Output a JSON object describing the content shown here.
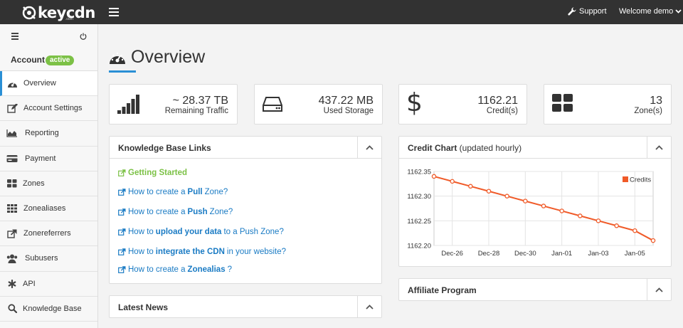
{
  "topbar": {
    "logo_text": "keycdn",
    "logo_sub": ".com",
    "support_label": "Support",
    "welcome_label": "Welcome demo"
  },
  "sidebar": {
    "account_label": "Account",
    "account_badge": "active",
    "items": [
      {
        "label": "Overview",
        "icon": "dashboard-icon",
        "active": true
      },
      {
        "label": "Account Settings",
        "icon": "edit-icon"
      },
      {
        "label": "Reporting",
        "icon": "area-chart-icon"
      },
      {
        "label": "Payment",
        "icon": "credit-card-icon"
      },
      {
        "label": "Zones",
        "icon": "grid-icon"
      },
      {
        "label": "Zonealiases",
        "icon": "grid-small-icon"
      },
      {
        "label": "Zonereferrers",
        "icon": "external-link-icon"
      },
      {
        "label": "Subusers",
        "icon": "users-icon"
      },
      {
        "label": "API",
        "icon": "asterisk-icon"
      },
      {
        "label": "Knowledge Base",
        "icon": "search-icon"
      }
    ]
  },
  "page": {
    "title": "Overview"
  },
  "stats": [
    {
      "value": "~ 28.37 TB",
      "caption": "Remaining Traffic",
      "icon": "signal-bars-icon"
    },
    {
      "value": "437.22 MB",
      "caption": "Used Storage",
      "icon": "hdd-icon"
    },
    {
      "value": "1162.21",
      "caption": "Credit(s)",
      "icon": "dollar-icon"
    },
    {
      "value": "13",
      "caption": "Zone(s)",
      "icon": "zones-grid-icon"
    }
  ],
  "kb_panel": {
    "title": "Knowledge Base Links",
    "links": [
      {
        "pre": "Getting Started",
        "bold": "",
        "post": ""
      },
      {
        "pre": "How to create a ",
        "bold": "Pull",
        "post": " Zone?"
      },
      {
        "pre": "How to create a ",
        "bold": "Push",
        "post": " Zone?"
      },
      {
        "pre": "How to ",
        "bold": "upload your data",
        "post": " to a Push Zone?"
      },
      {
        "pre": "How to ",
        "bold": "integrate the CDN",
        "post": " in your website?"
      },
      {
        "pre": "How to create a ",
        "bold": "Zonealias",
        "post": "?"
      }
    ]
  },
  "news_panel": {
    "title": "Latest News"
  },
  "credit_panel": {
    "title": "Credit Chart",
    "subtitle": " (updated hourly)"
  },
  "affiliate_panel": {
    "title": "Affiliate Program"
  },
  "colors": {
    "topbar": "#323232",
    "accent_blue": "#2a8fd5",
    "accent_green": "#7cc146",
    "link_blue": "#1a7bc4",
    "chart_line": "#f05a28"
  },
  "chart_data": {
    "type": "line",
    "x": [
      "Dec-25",
      "Dec-26",
      "Dec-27",
      "Dec-28",
      "Dec-29",
      "Dec-30",
      "Dec-31",
      "Jan-01",
      "Jan-02",
      "Jan-03",
      "Jan-04",
      "Jan-05",
      "Jan-06"
    ],
    "x_tick_labels": [
      "Dec-26",
      "Dec-28",
      "Dec-30",
      "Jan-01",
      "Jan-03",
      "Jan-05"
    ],
    "series": [
      {
        "name": "Credits",
        "values": [
          1162.34,
          1162.33,
          1162.32,
          1162.31,
          1162.3,
          1162.29,
          1162.28,
          1162.27,
          1162.26,
          1162.25,
          1162.24,
          1162.23,
          1162.21
        ]
      }
    ],
    "y_ticks": [
      "1162.35",
      "1162.30",
      "1162.25",
      "1162.20"
    ],
    "ylim": [
      1162.2,
      1162.35
    ],
    "grid": true,
    "legend": "top-right"
  }
}
